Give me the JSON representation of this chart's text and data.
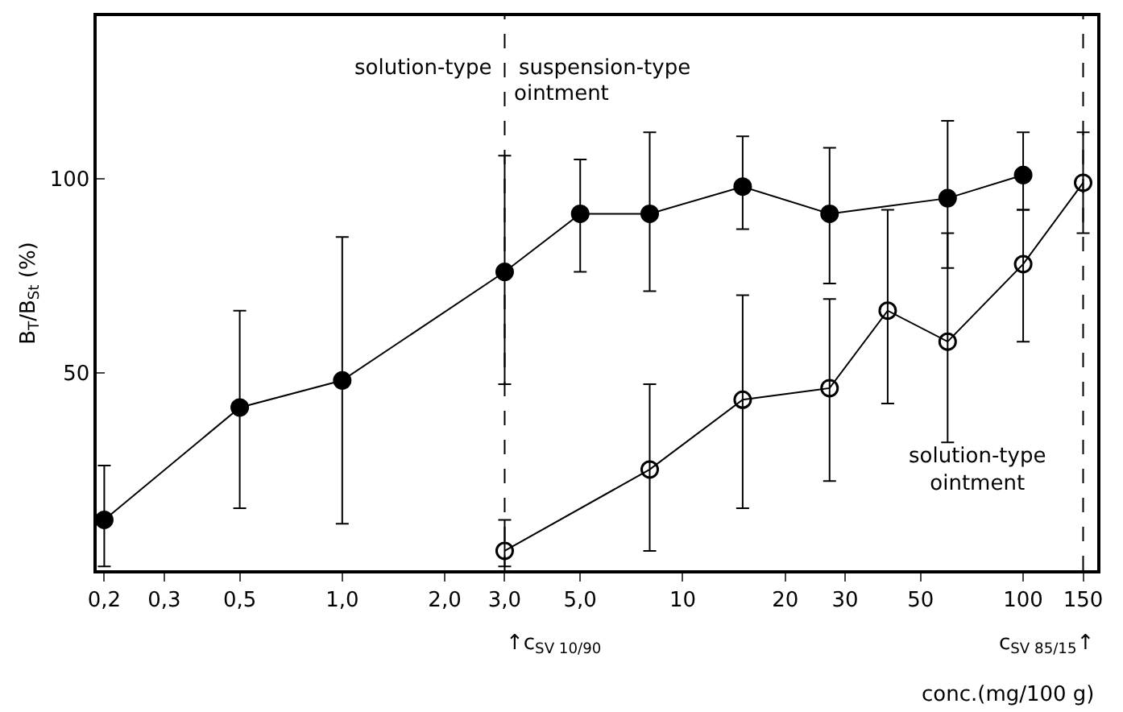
{
  "chart_data": {
    "type": "line",
    "xlabel": "conc.(mg/100 g)",
    "ylabel": "B$_{T}$/B$_{St}$ (%)",
    "log": "x",
    "xlim": [
      0.19,
      165
    ],
    "ylim": [
      -1,
      142
    ],
    "xticks": [
      {
        "value": 0.2,
        "label": "0,2"
      },
      {
        "value": 0.3,
        "label": "0,3"
      },
      {
        "value": 0.5,
        "label": "0,5"
      },
      {
        "value": 1,
        "label": "1,0"
      },
      {
        "value": 2,
        "label": "2,0"
      },
      {
        "value": 3,
        "label": "3,0"
      },
      {
        "value": 5,
        "label": "5,0"
      },
      10,
      20,
      30,
      50,
      100,
      150
    ],
    "yticks": [
      50,
      100
    ],
    "grid": false,
    "marker": "circle",
    "line_style": "solid",
    "series": [
      {
        "color": "#000000",
        "x": [
          0.2,
          0.5,
          1,
          3,
          5,
          8,
          15,
          27,
          60,
          100
        ],
        "values": [
          12,
          41,
          48,
          76,
          91,
          91,
          98,
          91,
          95,
          101
        ],
        "errors": [
          [
            0,
            26
          ],
          [
            15,
            66
          ],
          [
            11,
            85
          ],
          [
            47,
            106
          ],
          [
            76,
            105
          ],
          [
            71,
            112
          ],
          [
            87,
            111
          ],
          [
            73,
            108
          ],
          [
            77,
            115
          ],
          [
            92,
            112
          ]
        ]
      },
      {
        "color": "#000000",
        "x": [
          3,
          8,
          15,
          27,
          40,
          60,
          100,
          150
        ],
        "values": [
          4,
          25,
          43,
          46,
          66,
          58,
          78,
          99
        ],
        "errors": [
          [
            0,
            12
          ],
          [
            4,
            47
          ],
          [
            15,
            70
          ],
          [
            22,
            69
          ],
          [
            42,
            92
          ],
          [
            32,
            86
          ],
          [
            58,
            92
          ],
          [
            86,
            112
          ]
        ]
      }
    ],
    "ref_lines": [
      {
        "axis": "x",
        "value": 3,
        "line_style": "dashed"
      },
      {
        "axis": "x",
        "value": 150,
        "line_style": "dashed"
      }
    ],
    "annotations": [
      "solution-type",
      "suspension-type",
      "ointment",
      "solution-type ointment",
      "↑c$_{SV 10/90}$",
      "c$_{SV 85/15}$↑"
    ]
  }
}
